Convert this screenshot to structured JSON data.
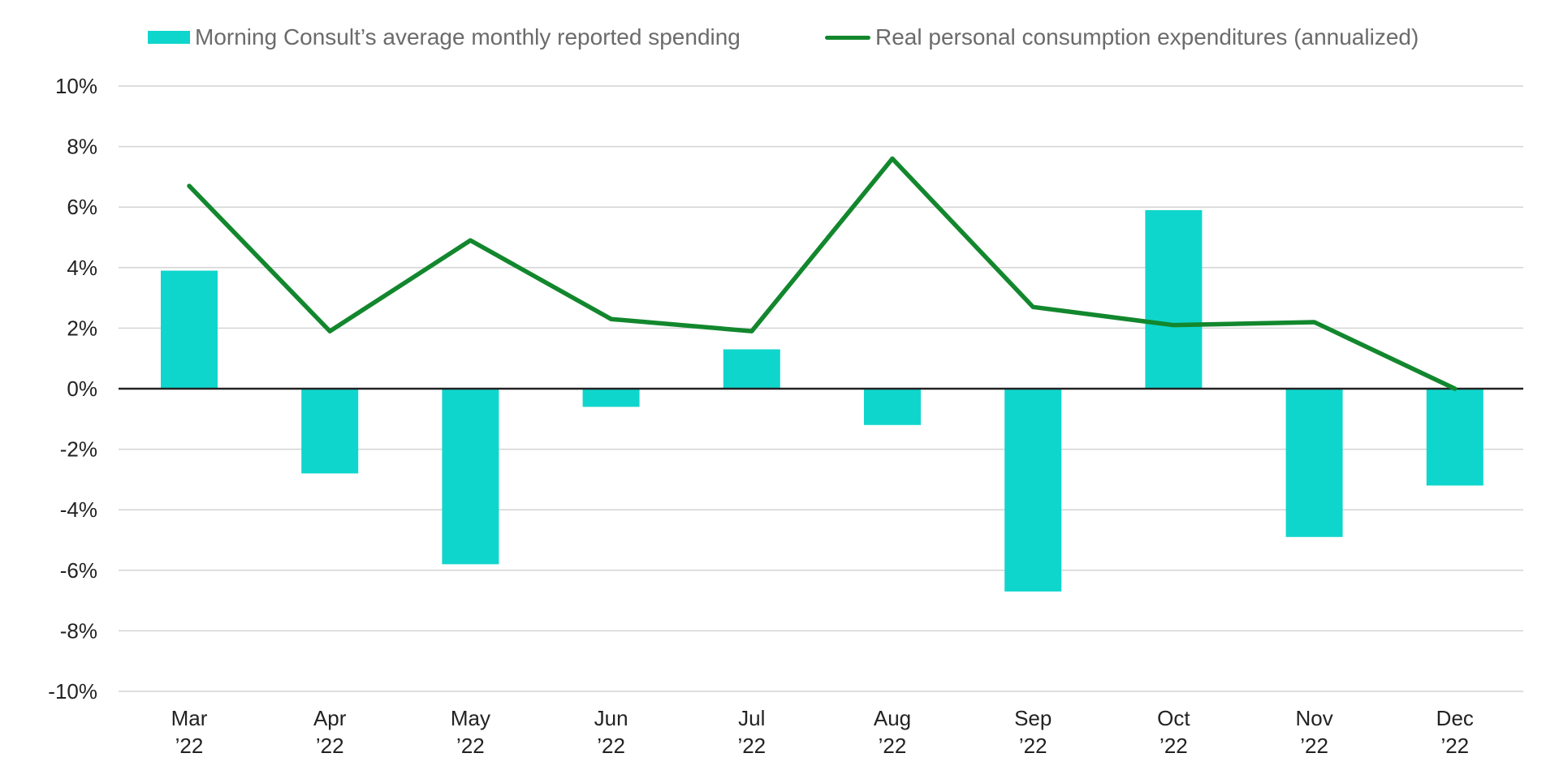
{
  "legend": {
    "bar_label": "Morning Consult’s average monthly reported spending",
    "line_label": "Real personal consumption expenditures (annualized)"
  },
  "colors": {
    "bar": "#0fd6cc",
    "line": "#12872d",
    "grid": "#d4d4d4",
    "zero_line": "#222222",
    "axis_text": "#222222"
  },
  "chart_data": {
    "type": "bar",
    "categories": [
      [
        "Mar",
        "’22"
      ],
      [
        "Apr",
        "’22"
      ],
      [
        "May",
        "’22"
      ],
      [
        "Jun",
        "’22"
      ],
      [
        "Jul",
        "’22"
      ],
      [
        "Aug",
        "’22"
      ],
      [
        "Sep",
        "’22"
      ],
      [
        "Oct",
        "’22"
      ],
      [
        "Nov",
        "’22"
      ],
      [
        "Dec",
        "’22"
      ]
    ],
    "series": [
      {
        "name": "Morning Consult’s average monthly reported spending",
        "type": "bar",
        "values": [
          3.9,
          -2.8,
          -5.8,
          -0.6,
          1.3,
          -1.2,
          -6.7,
          5.9,
          -4.9,
          -3.2
        ]
      },
      {
        "name": "Real personal consumption expenditures (annualized)",
        "type": "line",
        "values": [
          6.7,
          1.9,
          4.9,
          2.3,
          1.9,
          7.6,
          2.7,
          2.1,
          2.2,
          0.0
        ]
      }
    ],
    "ylim": [
      -10,
      10
    ],
    "yticks": [
      10,
      8,
      6,
      4,
      2,
      0,
      -2,
      -4,
      -6,
      -8,
      -10
    ],
    "ytick_format": "%",
    "grid": true,
    "legend_position": "top"
  }
}
